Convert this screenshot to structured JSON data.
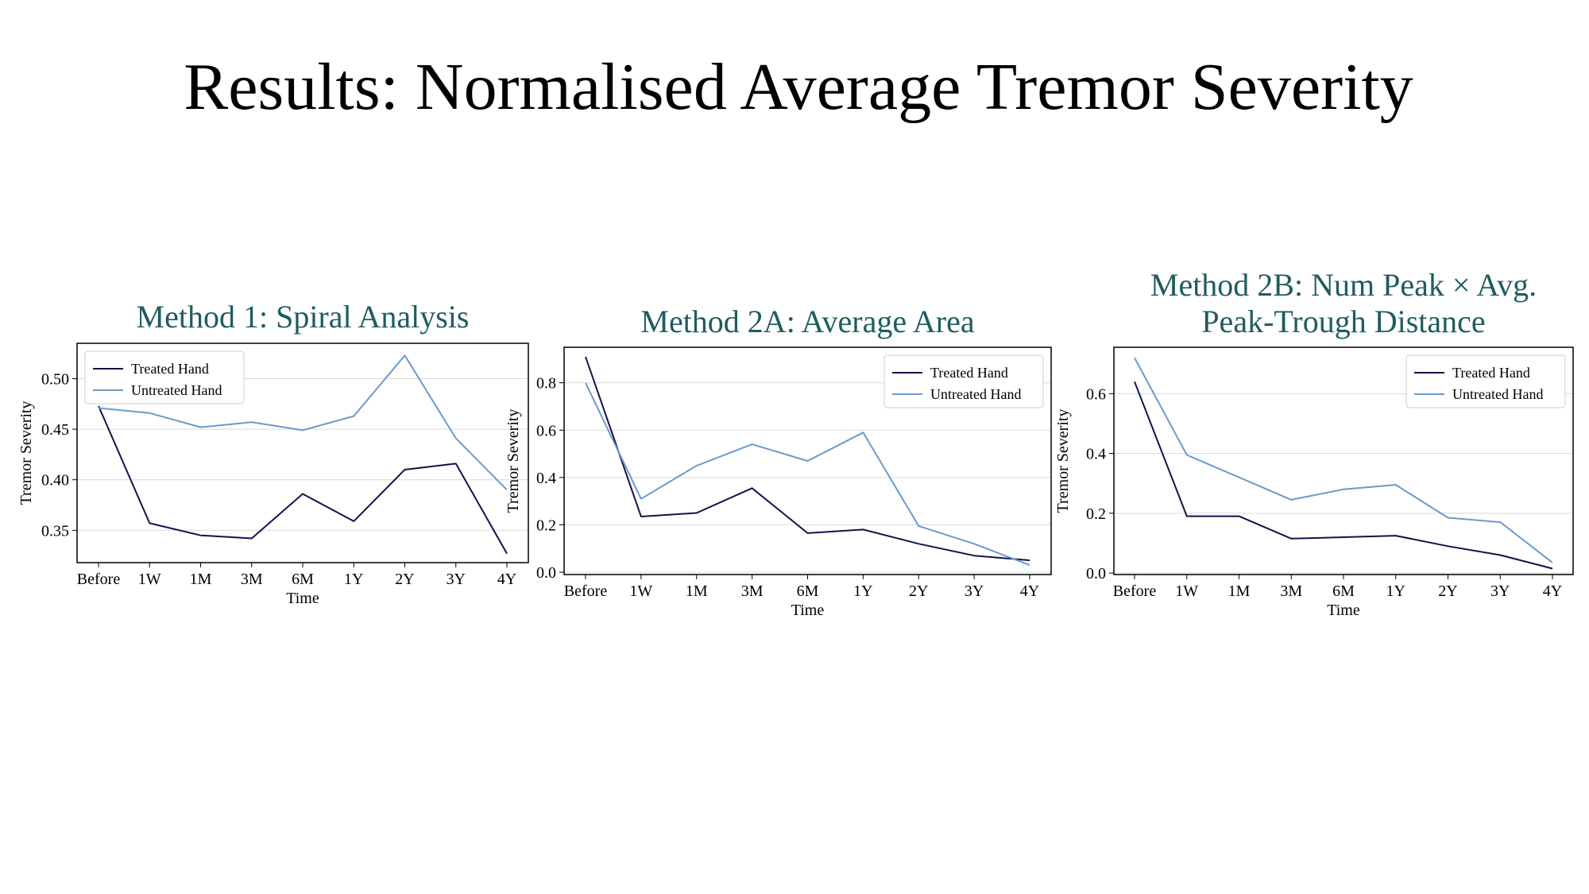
{
  "slide": {
    "title": "Results: Normalised Average Tremor Severity"
  },
  "colors": {
    "treated": "#14124a",
    "untreated": "#6a9acb",
    "title": "#1f5c5f",
    "grid": "#d9d9d9"
  },
  "chart_data": [
    {
      "type": "line",
      "title": [
        "Method 1: Spiral Analysis"
      ],
      "xlabel": "Time",
      "ylabel": "Tremor Severity",
      "categories": [
        "Before",
        "1W",
        "1M",
        "3M",
        "6M",
        "1Y",
        "2Y",
        "3Y",
        "4Y"
      ],
      "yticks": [
        "0.35",
        "0.40",
        "0.45",
        "0.50"
      ],
      "ylim": [
        0.318,
        0.535
      ],
      "grid": true,
      "legend_position": "top-left",
      "series": [
        {
          "name": "Treated Hand",
          "color": "#14124a",
          "values": [
            0.473,
            0.357,
            0.345,
            0.342,
            0.386,
            0.359,
            0.41,
            0.416,
            0.327
          ]
        },
        {
          "name": "Untreated Hand",
          "color": "#6a9acb",
          "values": [
            0.471,
            0.466,
            0.452,
            0.457,
            0.449,
            0.463,
            0.523,
            0.441,
            0.39
          ]
        }
      ]
    },
    {
      "type": "line",
      "title": [
        "Method 2A: Average Area"
      ],
      "xlabel": "Time",
      "ylabel": "Tremor Severity",
      "categories": [
        "Before",
        "1W",
        "1M",
        "3M",
        "6M",
        "1Y",
        "2Y",
        "3Y",
        "4Y"
      ],
      "yticks": [
        "0.0",
        "0.2",
        "0.4",
        "0.6",
        "0.8"
      ],
      "ylim": [
        -0.01,
        0.95
      ],
      "grid": true,
      "legend_position": "top-right",
      "series": [
        {
          "name": "Treated Hand",
          "color": "#14124a",
          "values": [
            0.91,
            0.235,
            0.25,
            0.355,
            0.165,
            0.18,
            0.12,
            0.07,
            0.05
          ]
        },
        {
          "name": "Untreated Hand",
          "color": "#6a9acb",
          "values": [
            0.8,
            0.31,
            0.45,
            0.54,
            0.47,
            0.59,
            0.195,
            0.12,
            0.03
          ]
        }
      ]
    },
    {
      "type": "line",
      "title": [
        "Method 2B: Num Peak × Avg.",
        "Peak-Trough Distance"
      ],
      "xlabel": "Time",
      "ylabel": "Tremor Severity",
      "categories": [
        "Before",
        "1W",
        "1M",
        "3M",
        "6M",
        "1Y",
        "2Y",
        "3Y",
        "4Y"
      ],
      "yticks": [
        "0.0",
        "0.2",
        "0.4",
        "0.6"
      ],
      "ylim": [
        -0.005,
        0.755
      ],
      "grid": true,
      "legend_position": "top-right",
      "series": [
        {
          "name": "Treated Hand",
          "color": "#14124a",
          "values": [
            0.64,
            0.19,
            0.19,
            0.115,
            0.12,
            0.125,
            0.09,
            0.06,
            0.015
          ]
        },
        {
          "name": "Untreated Hand",
          "color": "#6a9acb",
          "values": [
            0.72,
            0.395,
            0.32,
            0.245,
            0.28,
            0.295,
            0.185,
            0.17,
            0.035
          ]
        }
      ]
    }
  ]
}
